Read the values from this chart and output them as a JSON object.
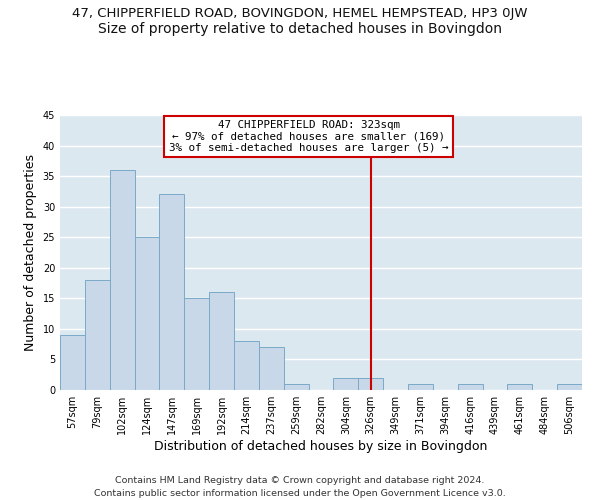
{
  "title_main": "47, CHIPPERFIELD ROAD, BOVINGDON, HEMEL HEMPSTEAD, HP3 0JW",
  "title_sub": "Size of property relative to detached houses in Bovingdon",
  "xlabel": "Distribution of detached houses by size in Bovingdon",
  "ylabel": "Number of detached properties",
  "bin_labels": [
    "57sqm",
    "79sqm",
    "102sqm",
    "124sqm",
    "147sqm",
    "169sqm",
    "192sqm",
    "214sqm",
    "237sqm",
    "259sqm",
    "282sqm",
    "304sqm",
    "326sqm",
    "349sqm",
    "371sqm",
    "394sqm",
    "416sqm",
    "439sqm",
    "461sqm",
    "484sqm",
    "506sqm"
  ],
  "bar_heights": [
    9,
    18,
    36,
    25,
    32,
    15,
    16,
    8,
    7,
    1,
    0,
    2,
    2,
    0,
    1,
    0,
    1,
    0,
    1,
    0,
    1
  ],
  "bar_color": "#c8d8e8",
  "bar_edge_color": "#7aaac8",
  "vline_x": 12,
  "vline_color": "#cc0000",
  "annotation_title": "47 CHIPPERFIELD ROAD: 323sqm",
  "annotation_line1": "← 97% of detached houses are smaller (169)",
  "annotation_line2": "3% of semi-detached houses are larger (5) →",
  "annotation_box_color": "#ffffff",
  "annotation_box_edge": "#cc0000",
  "ylim": [
    0,
    45
  ],
  "yticks": [
    0,
    5,
    10,
    15,
    20,
    25,
    30,
    35,
    40,
    45
  ],
  "footnote1": "Contains HM Land Registry data © Crown copyright and database right 2024.",
  "footnote2": "Contains public sector information licensed under the Open Government Licence v3.0.",
  "bg_color": "#ffffff",
  "plot_bg_color": "#dce8f0",
  "grid_color": "#ffffff",
  "title_fontsize": 9.5,
  "subtitle_fontsize": 10,
  "axis_label_fontsize": 9,
  "tick_fontsize": 7,
  "footnote_fontsize": 6.8
}
